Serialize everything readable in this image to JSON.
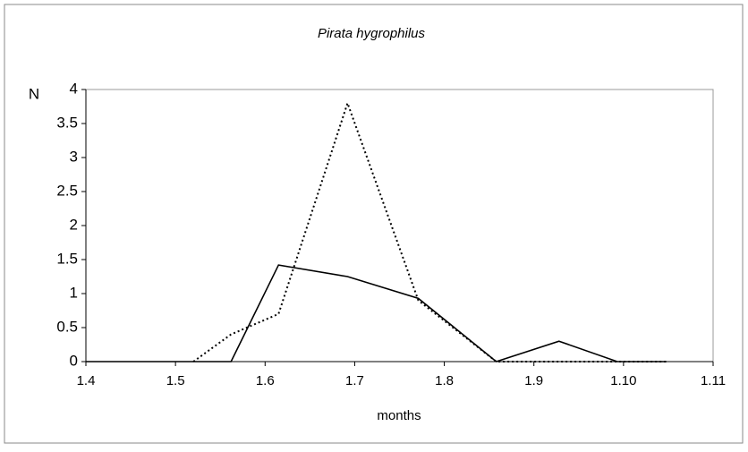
{
  "chart_data": {
    "type": "line",
    "title": "Pirata hygrophilus",
    "x_label": "months",
    "y_label": "N",
    "x": [
      4,
      5.2,
      5.62,
      6.15,
      6.92,
      7.71,
      8.58,
      9.28,
      9.93,
      10.48
    ],
    "series": [
      {
        "color": "#000000",
        "style": "solid",
        "values": [
          0,
          0,
          0,
          1.42,
          1.25,
          0.93,
          0,
          0.3,
          0,
          0
        ]
      },
      {
        "color": "#000000",
        "style": "dotted",
        "values": [
          null,
          0,
          0.4,
          0.7,
          3.8,
          0.9,
          0,
          0,
          0,
          0
        ]
      }
    ],
    "xlim": [
      4,
      11
    ],
    "xticks": [
      {
        "value": 4,
        "label": "1.4"
      },
      {
        "value": 5,
        "label": "1.5"
      },
      {
        "value": 6,
        "label": "1.6"
      },
      {
        "value": 7,
        "label": "1.7"
      },
      {
        "value": 8,
        "label": "1.8"
      },
      {
        "value": 9,
        "label": "1.9"
      },
      {
        "value": 10,
        "label": "1.10"
      },
      {
        "value": 11,
        "label": "1.11"
      }
    ],
    "ylim": [
      0,
      4
    ],
    "yticks": [
      0,
      0.5,
      1,
      1.5,
      2,
      2.5,
      3,
      3.5,
      4
    ],
    "grid": false
  }
}
